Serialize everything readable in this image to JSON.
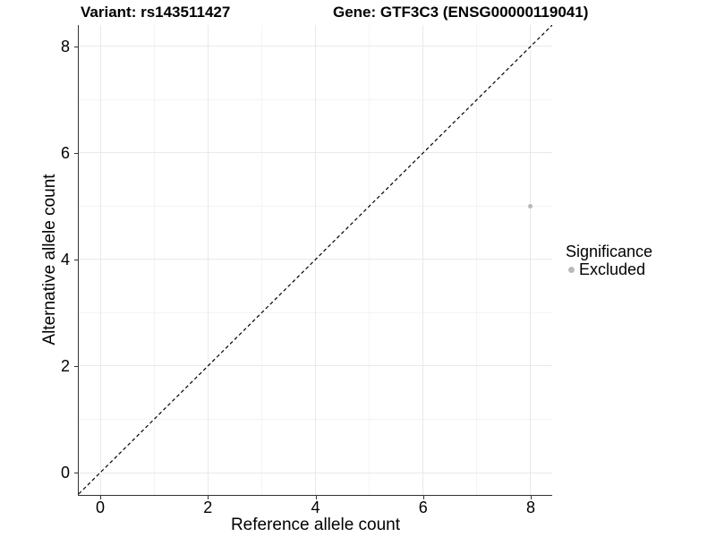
{
  "chart_data": {
    "type": "scatter",
    "title_left": "Variant: rs143511427",
    "title_right": "Gene: GTF3C3 (ENSG00000119041)",
    "xlabel": "Reference allele count",
    "ylabel": "Alternative allele count",
    "xlim": [
      -0.4,
      8.4
    ],
    "ylim": [
      -0.42,
      8.4
    ],
    "x_major_ticks": [
      0,
      2,
      4,
      6,
      8
    ],
    "y_major_ticks": [
      0,
      2,
      4,
      6,
      8
    ],
    "x_minor_ticks": [
      1,
      3,
      5,
      7
    ],
    "y_minor_ticks": [
      1,
      3,
      5,
      7
    ],
    "grid": "major+minor",
    "identity_line": {
      "slope": 1,
      "intercept": 0,
      "style": "dashed",
      "color": "#000000"
    },
    "series": [
      {
        "name": "Excluded",
        "marker": "circle",
        "color": "#b9b9b9",
        "points": [
          {
            "x": 8,
            "y": 5
          }
        ]
      }
    ],
    "legend": {
      "title": "Significance",
      "position": "right",
      "items": [
        {
          "label": "Excluded",
          "color": "#b9b9b9",
          "marker": "circle"
        }
      ]
    },
    "colors": {
      "background": "#ffffff",
      "text": "#000000",
      "axis_line": "#333333",
      "tick_mark": "#333333",
      "grid_major": "#e9e9e9",
      "grid_minor": "#f4f4f4"
    }
  }
}
